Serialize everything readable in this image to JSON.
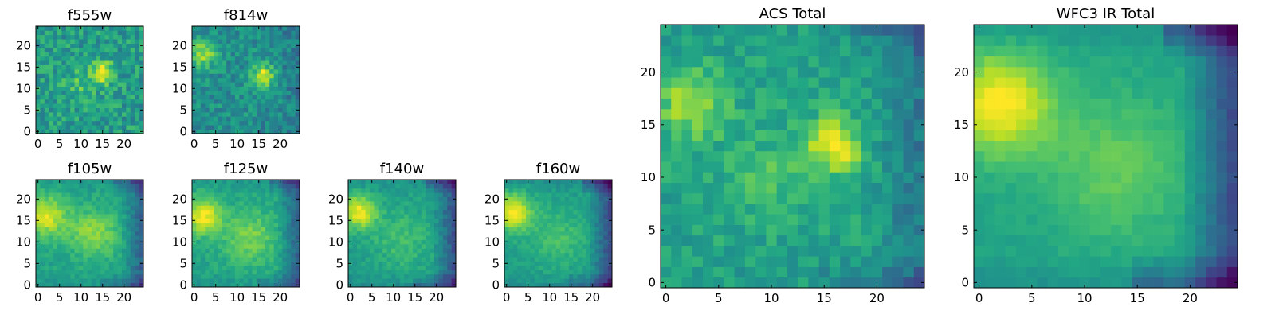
{
  "chart_data": [
    {
      "type": "heatmap",
      "title": "f555w",
      "xticks": [
        "0",
        "5",
        "10",
        "15",
        "20"
      ],
      "yticks": [
        "0",
        "5",
        "10",
        "15",
        "20"
      ],
      "range": [
        0,
        24
      ],
      "grid": false,
      "colormap": "viridis",
      "pattern": {
        "noise": 0.3,
        "base": 0.55,
        "blobs": [
          {
            "cx": 15,
            "cy": 13.5,
            "s": 1.8,
            "a": 0.45
          },
          {
            "cx": 10,
            "cy": 11,
            "s": 2.5,
            "a": 0.15
          }
        ],
        "edge": 0.0
      }
    },
    {
      "type": "heatmap",
      "title": "f814w",
      "xticks": [
        "0",
        "5",
        "10",
        "15",
        "20"
      ],
      "yticks": [
        "0",
        "5",
        "10",
        "15",
        "20"
      ],
      "range": [
        0,
        24
      ],
      "grid": false,
      "colormap": "viridis",
      "pattern": {
        "noise": 0.25,
        "base": 0.5,
        "blobs": [
          {
            "cx": 16,
            "cy": 13,
            "s": 1.8,
            "a": 0.45
          },
          {
            "cx": 2,
            "cy": 18,
            "s": 2.2,
            "a": 0.35
          }
        ],
        "edge": 0.15
      }
    },
    {
      "type": "heatmap",
      "title": "f105w",
      "xticks": [
        "0",
        "5",
        "10",
        "15",
        "20"
      ],
      "yticks": [
        "0",
        "5",
        "10",
        "15",
        "20"
      ],
      "range": [
        0,
        24
      ],
      "grid": false,
      "colormap": "viridis",
      "pattern": {
        "noise": 0.12,
        "base": 0.58,
        "blobs": [
          {
            "cx": 2,
            "cy": 16,
            "s": 3.5,
            "a": 0.35
          },
          {
            "cx": 13,
            "cy": 12,
            "s": 4,
            "a": 0.25
          }
        ],
        "edge": 0.45
      }
    },
    {
      "type": "heatmap",
      "title": "f125w",
      "xticks": [
        "0",
        "5",
        "10",
        "15",
        "20"
      ],
      "yticks": [
        "0",
        "5",
        "10",
        "15",
        "20"
      ],
      "range": [
        0,
        24
      ],
      "grid": false,
      "colormap": "viridis",
      "pattern": {
        "noise": 0.12,
        "base": 0.58,
        "blobs": [
          {
            "cx": 2,
            "cy": 16,
            "s": 3,
            "a": 0.4
          },
          {
            "cx": 13,
            "cy": 11,
            "s": 4.5,
            "a": 0.22
          }
        ],
        "edge": 0.45
      }
    },
    {
      "type": "heatmap",
      "title": "f140w",
      "xticks": [
        "0",
        "5",
        "10",
        "15",
        "20"
      ],
      "yticks": [
        "0",
        "5",
        "10",
        "15",
        "20"
      ],
      "range": [
        0,
        24
      ],
      "grid": false,
      "colormap": "viridis",
      "pattern": {
        "noise": 0.12,
        "base": 0.55,
        "blobs": [
          {
            "cx": 2,
            "cy": 17,
            "s": 2.8,
            "a": 0.42
          },
          {
            "cx": 12,
            "cy": 11,
            "s": 5,
            "a": 0.15
          }
        ],
        "edge": 0.5
      }
    },
    {
      "type": "heatmap",
      "title": "f160w",
      "xticks": [
        "0",
        "5",
        "10",
        "15",
        "20"
      ],
      "yticks": [
        "0",
        "5",
        "10",
        "15",
        "20"
      ],
      "range": [
        0,
        24
      ],
      "grid": false,
      "colormap": "viridis",
      "pattern": {
        "noise": 0.1,
        "base": 0.55,
        "blobs": [
          {
            "cx": 1.5,
            "cy": 17,
            "s": 3,
            "a": 0.45
          },
          {
            "cx": 12,
            "cy": 11,
            "s": 5,
            "a": 0.15
          }
        ],
        "edge": 0.55
      }
    },
    {
      "type": "heatmap",
      "title": "ACS Total",
      "xticks": [
        "0",
        "5",
        "10",
        "15",
        "20"
      ],
      "yticks": [
        "0",
        "5",
        "10",
        "15",
        "20"
      ],
      "range": [
        0,
        24
      ],
      "grid": false,
      "colormap": "viridis",
      "pattern": {
        "noise": 0.18,
        "base": 0.58,
        "blobs": [
          {
            "cx": 16,
            "cy": 13,
            "s": 1.8,
            "a": 0.4
          },
          {
            "cx": 2.5,
            "cy": 17,
            "s": 2.2,
            "a": 0.3
          },
          {
            "cx": 10,
            "cy": 10,
            "s": 3,
            "a": 0.12
          }
        ],
        "edge": 0.3
      }
    },
    {
      "type": "heatmap",
      "title": "WFC3 IR Total",
      "xticks": [
        "0",
        "5",
        "10",
        "15",
        "20"
      ],
      "yticks": [
        "0",
        "5",
        "10",
        "15",
        "20"
      ],
      "range": [
        0,
        24
      ],
      "grid": false,
      "colormap": "viridis",
      "pattern": {
        "noise": 0.06,
        "base": 0.58,
        "blobs": [
          {
            "cx": 2,
            "cy": 17,
            "s": 3.5,
            "a": 0.42
          },
          {
            "cx": 13,
            "cy": 11,
            "s": 5,
            "a": 0.18
          }
        ],
        "edge": 0.6
      }
    }
  ]
}
